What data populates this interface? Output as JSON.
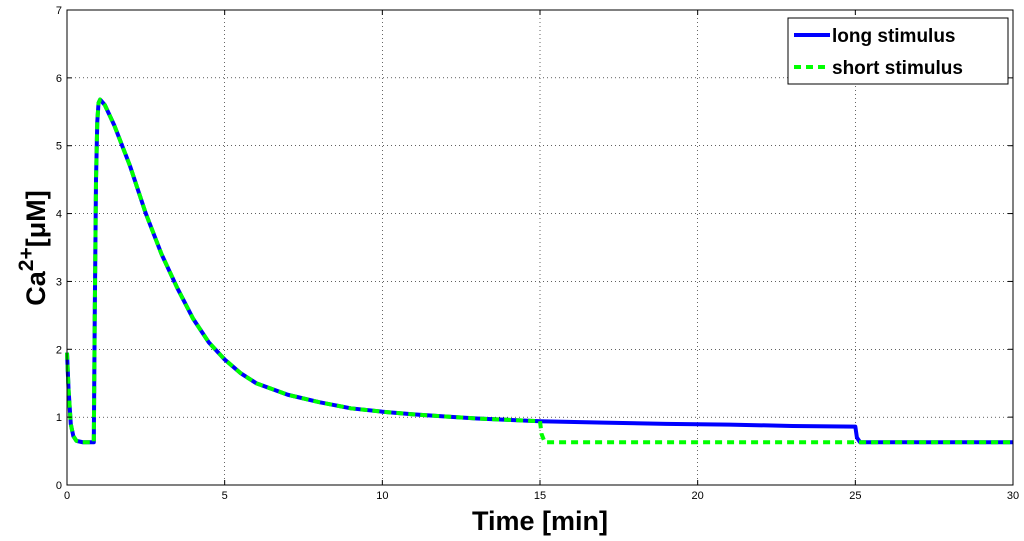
{
  "chart_data": {
    "type": "line",
    "title": "",
    "xlabel": "Time [min]",
    "ylabel_base": "Ca",
    "ylabel_sup": "2+",
    "ylabel_unit": "[μM]",
    "xlim": [
      0,
      30
    ],
    "ylim": [
      0,
      7
    ],
    "xticks": [
      0,
      5,
      10,
      15,
      20,
      25,
      30
    ],
    "yticks": [
      0,
      1,
      2,
      3,
      4,
      5,
      6,
      7
    ],
    "grid": true,
    "legend_position": "top-right",
    "series": [
      {
        "name": "long stimulus",
        "color": "#0000ff",
        "dash": "solid",
        "points": [
          [
            0,
            1.95
          ],
          [
            0.05,
            1.4
          ],
          [
            0.12,
            0.9
          ],
          [
            0.2,
            0.72
          ],
          [
            0.3,
            0.65
          ],
          [
            0.5,
            0.63
          ],
          [
            0.85,
            0.63
          ],
          [
            0.88,
            2.5
          ],
          [
            0.92,
            4.5
          ],
          [
            0.96,
            5.35
          ],
          [
            1.0,
            5.63
          ],
          [
            1.05,
            5.68
          ],
          [
            1.2,
            5.6
          ],
          [
            1.5,
            5.3
          ],
          [
            2.0,
            4.7
          ],
          [
            2.5,
            4.0
          ],
          [
            3.0,
            3.4
          ],
          [
            3.5,
            2.9
          ],
          [
            4.0,
            2.45
          ],
          [
            4.5,
            2.1
          ],
          [
            5.0,
            1.85
          ],
          [
            5.5,
            1.65
          ],
          [
            6.0,
            1.5
          ],
          [
            7.0,
            1.33
          ],
          [
            8.0,
            1.22
          ],
          [
            9.0,
            1.13
          ],
          [
            10.0,
            1.08
          ],
          [
            11.0,
            1.04
          ],
          [
            12.0,
            1.01
          ],
          [
            13.0,
            0.98
          ],
          [
            14.0,
            0.96
          ],
          [
            15.0,
            0.94
          ],
          [
            17.0,
            0.92
          ],
          [
            19.0,
            0.9
          ],
          [
            21.0,
            0.89
          ],
          [
            23.0,
            0.87
          ],
          [
            25.0,
            0.86
          ],
          [
            25.05,
            0.7
          ],
          [
            25.15,
            0.63
          ],
          [
            30.0,
            0.63
          ]
        ]
      },
      {
        "name": "short stimulus",
        "color": "#00ff00",
        "dash": "dashed",
        "points": [
          [
            0,
            1.95
          ],
          [
            0.05,
            1.4
          ],
          [
            0.12,
            0.9
          ],
          [
            0.2,
            0.72
          ],
          [
            0.3,
            0.65
          ],
          [
            0.5,
            0.63
          ],
          [
            0.85,
            0.63
          ],
          [
            0.88,
            2.5
          ],
          [
            0.92,
            4.5
          ],
          [
            0.96,
            5.35
          ],
          [
            1.0,
            5.63
          ],
          [
            1.05,
            5.68
          ],
          [
            1.2,
            5.6
          ],
          [
            1.5,
            5.3
          ],
          [
            2.0,
            4.7
          ],
          [
            2.5,
            4.0
          ],
          [
            3.0,
            3.4
          ],
          [
            3.5,
            2.9
          ],
          [
            4.0,
            2.45
          ],
          [
            4.5,
            2.1
          ],
          [
            5.0,
            1.85
          ],
          [
            5.5,
            1.65
          ],
          [
            6.0,
            1.5
          ],
          [
            7.0,
            1.33
          ],
          [
            8.0,
            1.22
          ],
          [
            9.0,
            1.13
          ],
          [
            10.0,
            1.08
          ],
          [
            11.0,
            1.04
          ],
          [
            12.0,
            1.01
          ],
          [
            13.0,
            0.98
          ],
          [
            14.0,
            0.96
          ],
          [
            15.0,
            0.94
          ],
          [
            15.05,
            0.75
          ],
          [
            15.15,
            0.63
          ],
          [
            30.0,
            0.63
          ]
        ]
      }
    ]
  }
}
